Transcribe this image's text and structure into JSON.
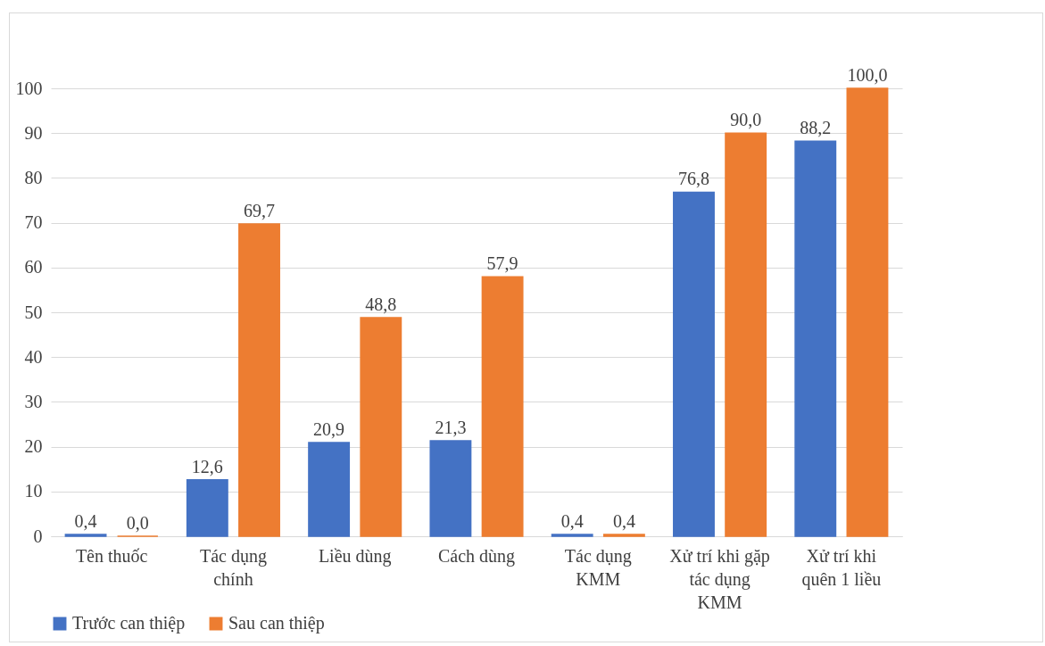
{
  "chart_data": {
    "type": "bar",
    "categories": [
      "Tên thuốc",
      "Tác dụng chính",
      "Liều dùng",
      "Cách dùng",
      "Tác dụng KMM",
      "Xử trí khi gặp tác dụng KMM",
      "Xử trí khi quên 1 liều"
    ],
    "series": [
      {
        "name": "Trước can thiệp",
        "color": "#4472c4",
        "values": [
          0.4,
          12.6,
          20.9,
          21.3,
          0.4,
          76.8,
          88.2
        ],
        "value_labels": [
          "0,4",
          "12,6",
          "20,9",
          "21,3",
          "0,4",
          "76,8",
          "88,2"
        ]
      },
      {
        "name": "Sau can thiệp",
        "color": "#ed7d31",
        "values": [
          0.0,
          69.7,
          48.8,
          57.9,
          0.4,
          90.0,
          100.0
        ],
        "value_labels": [
          "0,0",
          "69,7",
          "48,8",
          "57,9",
          "0,4",
          "90,0",
          "100,0"
        ]
      }
    ],
    "ylim": [
      0,
      100
    ],
    "yticks": [
      0,
      10,
      20,
      30,
      40,
      50,
      60,
      70,
      80,
      90,
      100
    ],
    "grid": "y",
    "legend": "bottom"
  }
}
